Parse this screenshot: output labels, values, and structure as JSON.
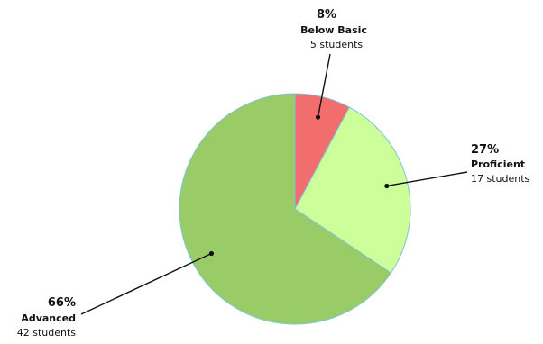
{
  "chart_data": {
    "type": "pie",
    "title": "",
    "legend": "none",
    "slices": [
      {
        "label": "Below Basic",
        "percent_label": "8%",
        "count_label": "5 students",
        "value": 5,
        "color": "#f26d6d"
      },
      {
        "label": "Proficient",
        "percent_label": "27%",
        "count_label": "17 students",
        "value": 17,
        "color": "#ccff99"
      },
      {
        "label": "Advanced",
        "percent_label": "66%",
        "count_label": "42 students",
        "value": 42,
        "color": "#99cc66"
      }
    ],
    "edge_color": "#7fc4d6"
  }
}
